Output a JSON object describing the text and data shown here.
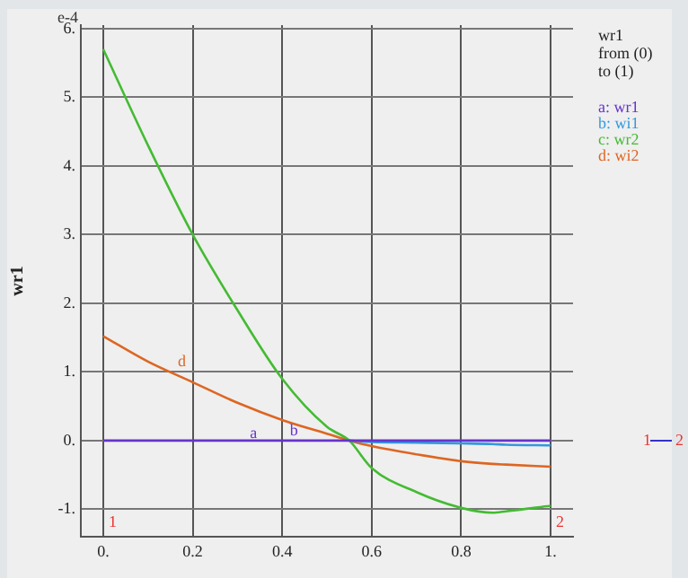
{
  "chart_data": {
    "type": "line",
    "ylabel": "wr1",
    "legend_title": "wr1\nfrom (0)\nto (1)",
    "legend": "top right",
    "grid": true,
    "marker": "none",
    "line_style": "solid",
    "xlim": [
      -0.05,
      1.05
    ],
    "ylim": [
      -1.4,
      6.05
    ],
    "xticks": [
      {
        "value": 0,
        "label": "0."
      },
      0.2,
      0.4,
      0.6,
      0.8,
      {
        "value": 1,
        "label": "1."
      }
    ],
    "yticks": [
      {
        "value": -1,
        "label": "-1."
      },
      {
        "value": 0,
        "label": "0."
      },
      {
        "value": 1,
        "label": "1."
      },
      {
        "value": 2,
        "label": "2."
      },
      {
        "value": 3,
        "label": "3."
      },
      {
        "value": 4,
        "label": "4."
      },
      {
        "value": 5,
        "label": "5."
      },
      {
        "value": 6,
        "label": "6."
      }
    ],
    "x": [
      0,
      0.1,
      0.2,
      0.3,
      0.4,
      0.5,
      0.55,
      0.6,
      0.7,
      0.8,
      0.87,
      0.9,
      1
    ],
    "series": [
      {
        "name": "a: wr1",
        "color": "#6633cc",
        "values": [
          0,
          0,
          0,
          0,
          0,
          0,
          0,
          0,
          0,
          0,
          0,
          0,
          0
        ]
      },
      {
        "name": "b: wi1",
        "color": "#3399dd",
        "values": [
          null,
          null,
          null,
          null,
          null,
          null,
          0,
          -0.02,
          -0.03,
          -0.04,
          -0.05,
          -0.06,
          -0.07
        ]
      },
      {
        "name": "c: wr2",
        "color": "#44bb33",
        "values": [
          5.7,
          4.3,
          3.0,
          1.9,
          0.9,
          0.2,
          0,
          -0.4,
          -0.75,
          -0.98,
          -1.05,
          -1.03,
          -0.95
        ]
      },
      {
        "name": "d: wi2",
        "color": "#dd6622",
        "values": [
          1.52,
          1.15,
          0.85,
          0.55,
          0.3,
          0.1,
          0,
          -0.08,
          -0.2,
          -0.3,
          -0.34,
          -0.35,
          -0.38
        ]
      }
    ],
    "annotations": [
      "e-4",
      {
        "text": "a",
        "x": 0.32,
        "y": -0.05
      },
      {
        "text": "b",
        "x": 0.41,
        "y": 0
      },
      {
        "text": "d",
        "x": 0.16,
        "y": 1
      },
      "1",
      "2",
      "1",
      "2"
    ]
  }
}
